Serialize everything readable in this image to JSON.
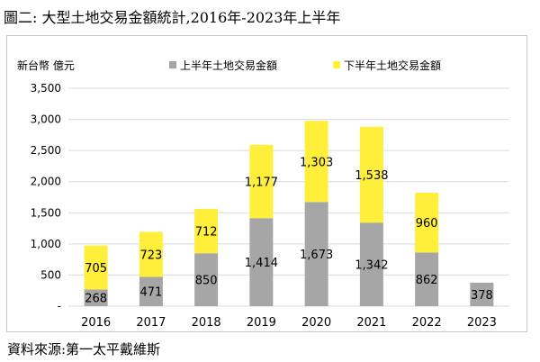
{
  "title": "圖二: 大型土地交易金額統計,2016年-2023年上半年",
  "source": "資料來源:第一太平戴維斯",
  "colors": {
    "first_half": "#a6a6a6",
    "second_half": "#ffef3a",
    "grid": "#d9d9d9",
    "text": "#000000"
  },
  "chart_data": {
    "type": "bar",
    "stacked": true,
    "ylabel": "新台幣 億元",
    "xlabel": "",
    "ylim": [
      0,
      3500
    ],
    "yticks": [
      0,
      500,
      1000,
      1500,
      2000,
      2500,
      3000,
      3500
    ],
    "ytick_labels": [
      "-",
      "500",
      "1,000",
      "1,500",
      "2,000",
      "2,500",
      "3,000",
      "3,500"
    ],
    "grid": true,
    "legend_position": "top",
    "categories": [
      "2016",
      "2017",
      "2018",
      "2019",
      "2020",
      "2021",
      "2022",
      "2023"
    ],
    "series": [
      {
        "name": "上半年土地交易金額",
        "values": [
          268,
          471,
          850,
          1414,
          1673,
          1342,
          862,
          378
        ],
        "labels": [
          "268",
          "471",
          "850",
          "1,414",
          "1,673",
          "1,342",
          "862",
          "378"
        ]
      },
      {
        "name": "下半年土地交易金額",
        "values": [
          705,
          723,
          712,
          1177,
          1303,
          1538,
          960,
          null
        ],
        "labels": [
          "705",
          "723",
          "712",
          "1,177",
          "1,303",
          "1,538",
          "960",
          ""
        ]
      }
    ]
  }
}
